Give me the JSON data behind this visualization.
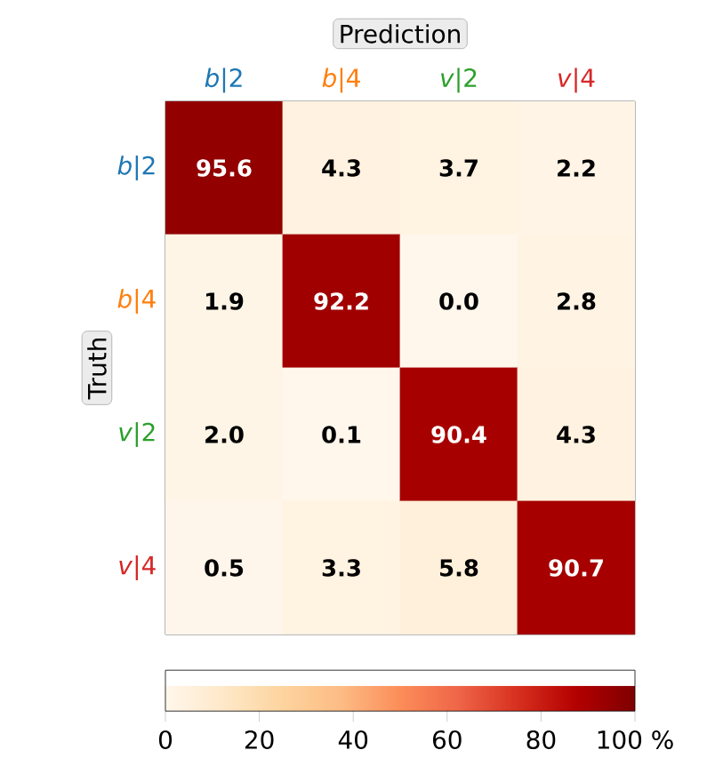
{
  "chart_data": {
    "type": "heatmap",
    "xlabel": "Prediction",
    "ylabel": "Truth",
    "categories": [
      "*b*|2",
      "*b*|4",
      "*v*|2",
      "*v*|4"
    ],
    "y_categories": [
      "*b*|2",
      "*b*|4",
      "*v*|2",
      "*v*|4"
    ],
    "cells": [
      [
        95.6,
        4.3,
        3.7,
        2.2
      ],
      [
        1.9,
        92.2,
        0.0,
        2.8
      ],
      [
        2.0,
        0.1,
        90.4,
        4.3
      ],
      [
        0.5,
        3.3,
        5.8,
        90.7
      ]
    ],
    "clim": [
      0,
      100
    ],
    "cticks": [
      0,
      20,
      40,
      60,
      80,
      {
        "value": 100,
        "label": "100 %"
      }
    ],
    "cell_labels": [
      [
        "95.6",
        "4.3",
        "3.7",
        "2.2"
      ],
      [
        "1.9",
        "92.2",
        "0.0",
        "2.8"
      ],
      [
        "2.0",
        "0.1",
        "90.4",
        "4.3"
      ],
      [
        "0.5",
        "3.3",
        "5.8",
        "90.7"
      ]
    ]
  }
}
